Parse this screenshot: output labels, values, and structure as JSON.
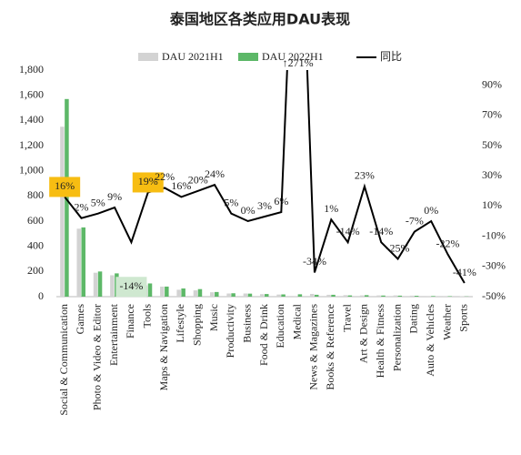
{
  "chart_data": {
    "type": "bar-line",
    "title": "泰国地区各类应用DAU表现",
    "categories": [
      "Social & Communication",
      "Games",
      "Photo & Video & Editor",
      "Entertainment",
      "Finance",
      "Tools",
      "Maps & Navigation",
      "Lifestyle",
      "Shopping",
      "Music",
      "Productivity",
      "Business",
      "Food & Drink",
      "Education",
      "Medical",
      "News & Magazines",
      "Books & Reference",
      "Travel",
      "Art & Design",
      "Health & Fitness",
      "Personalization",
      "Dating",
      "Auto & Vehicles",
      "Weather",
      "Sports"
    ],
    "series": [
      {
        "name": "DAU 2021H1",
        "color": "#d3d3d3",
        "values": [
          1350,
          540,
          190,
          170,
          120,
          90,
          80,
          55,
          50,
          35,
          25,
          25,
          20,
          17,
          5,
          22,
          15,
          12,
          10,
          10,
          10,
          8,
          5,
          5,
          4
        ]
      },
      {
        "name": "DAU 2022H1",
        "color": "#5db868",
        "values": [
          1570,
          550,
          200,
          185,
          105,
          105,
          80,
          65,
          60,
          37,
          27,
          24,
          21,
          18,
          19,
          15,
          15,
          10,
          12,
          9,
          8,
          7,
          5,
          4,
          2
        ]
      },
      {
        "name": "同比",
        "color": "#000000",
        "axis": "y2",
        "values": [
          16,
          2,
          5,
          9,
          -14,
          19,
          22,
          16,
          20,
          24,
          5,
          0,
          3,
          6,
          271,
          -34,
          1,
          -14,
          23,
          -14,
          -25,
          -7,
          0,
          -22,
          -41
        ],
        "value_labels": [
          "16%",
          "2%",
          "5%",
          "9%",
          "-14%",
          "19%",
          "22%",
          "16%",
          "20%",
          "24%",
          "5%",
          "0%",
          "3%",
          "6%",
          "↑271%",
          "-34%",
          "1%",
          "-14%",
          "23%",
          "-14%",
          "-25%",
          "-7%",
          "0%",
          "-22%",
          "-41%"
        ],
        "label_backgrounds": [
          "#f7bd12",
          null,
          null,
          null,
          "#cfe8d0",
          "#f7bd12",
          null,
          null,
          null,
          null,
          null,
          null,
          null,
          null,
          null,
          null,
          null,
          null,
          null,
          null,
          null,
          null,
          null,
          null,
          null
        ]
      }
    ],
    "ylim": [
      0,
      1800
    ],
    "yticks": [
      0,
      200,
      400,
      600,
      800,
      {
        "value": 1000,
        "label": "1,000"
      },
      {
        "value": 1200,
        "label": "1,200"
      },
      {
        "value": 1400,
        "label": "1,400"
      },
      {
        "value": 1600,
        "label": "1,600"
      },
      {
        "value": 1800,
        "label": "1,800"
      }
    ],
    "y2lim": [
      -50,
      100
    ],
    "y2ticks": [
      {
        "value": -50,
        "label": "-50%"
      },
      {
        "value": -30,
        "label": "-30%"
      },
      {
        "value": -10,
        "label": "-10%"
      },
      {
        "value": 10,
        "label": "10%"
      },
      {
        "value": 30,
        "label": "30%"
      },
      {
        "value": 50,
        "label": "50%"
      },
      {
        "value": 70,
        "label": "70%"
      },
      {
        "value": 90,
        "label": "90%"
      }
    ],
    "legend": "top"
  }
}
